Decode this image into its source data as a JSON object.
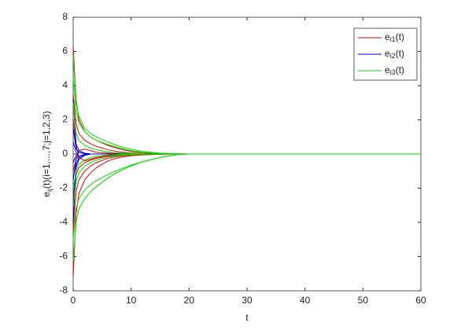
{
  "chart_data": {
    "type": "line",
    "xlabel": "t",
    "ylabel": [
      "e",
      "ij",
      "(t)(i=1,...,7;j=1,2,3)"
    ],
    "x": [
      0,
      0.5,
      1,
      2,
      3,
      4,
      6,
      8,
      10,
      12,
      15,
      18,
      20,
      30,
      40,
      50,
      60
    ],
    "xlim": [
      0,
      60
    ],
    "xticks": [
      0,
      10,
      20,
      30,
      40,
      50,
      60
    ],
    "ylim": [
      -8,
      8
    ],
    "yticks": [
      -8,
      -6,
      -4,
      -2,
      0,
      2,
      4,
      6,
      8
    ],
    "legend": "upper-right",
    "series": [
      {
        "name": [
          "e",
          "i1",
          "(t)"
        ],
        "color": "#e00000",
        "values": [
          [
            6.3,
            3.2,
            2.0,
            1.3,
            1.0,
            0.8,
            0.5,
            0.3,
            0.15,
            0.08,
            0.03,
            0.01,
            0,
            0,
            0,
            0,
            0
          ],
          [
            3.5,
            1.8,
            1.2,
            0.8,
            0.6,
            0.45,
            0.25,
            0.12,
            0.06,
            0.03,
            0.01,
            0,
            0,
            0,
            0,
            0,
            0
          ],
          [
            2.0,
            0.5,
            -0.2,
            -0.4,
            -0.3,
            -0.2,
            -0.1,
            -0.05,
            -0.02,
            0,
            0,
            0,
            0,
            0,
            0,
            0,
            0
          ],
          [
            -1.0,
            -0.3,
            0.2,
            0.3,
            0.2,
            0.1,
            0.05,
            0.02,
            0,
            0,
            0,
            0,
            0,
            0,
            0,
            0,
            0
          ],
          [
            -2.5,
            -1.2,
            -0.8,
            -0.5,
            -0.35,
            -0.25,
            -0.12,
            -0.06,
            -0.03,
            -0.01,
            0,
            0,
            0,
            0,
            0,
            0,
            0
          ],
          [
            -4.5,
            -2.2,
            -1.5,
            -1.0,
            -0.7,
            -0.5,
            -0.25,
            -0.12,
            -0.06,
            -0.03,
            -0.01,
            0,
            0,
            0,
            0,
            0,
            0
          ],
          [
            -7.2,
            -3.5,
            -2.3,
            -1.5,
            -1.1,
            -0.8,
            -0.4,
            -0.2,
            -0.1,
            -0.05,
            -0.02,
            0,
            0,
            0,
            0,
            0,
            0
          ]
        ]
      },
      {
        "name": [
          "e",
          "i2",
          "(t)"
        ],
        "color": "#0000d0",
        "values": [
          [
            3.2,
            0.6,
            0.2,
            0.05,
            0,
            0,
            0,
            0,
            0,
            0,
            0,
            0,
            0,
            0,
            0,
            0,
            0
          ],
          [
            1.5,
            0.3,
            0.1,
            0.02,
            0,
            0,
            0,
            0,
            0,
            0,
            0,
            0,
            0,
            0,
            0,
            0,
            0
          ],
          [
            0.7,
            0.1,
            -0.2,
            -0.05,
            0,
            0,
            0,
            0,
            0,
            0,
            0,
            0,
            0,
            0,
            0,
            0,
            0
          ],
          [
            -0.5,
            -0.1,
            0.1,
            0.02,
            0,
            0,
            0,
            0,
            0,
            0,
            0,
            0,
            0,
            0,
            0,
            0,
            0
          ],
          [
            -1.5,
            -0.3,
            -0.1,
            -0.02,
            0,
            0,
            0,
            0,
            0,
            0,
            0,
            0,
            0,
            0,
            0,
            0,
            0
          ],
          [
            -3.0,
            -0.6,
            -0.2,
            -0.05,
            0,
            0,
            0,
            0,
            0,
            0,
            0,
            0,
            0,
            0,
            0,
            0,
            0
          ],
          [
            -4.0,
            -0.8,
            -0.3,
            -0.08,
            0,
            0,
            0,
            0,
            0,
            0,
            0,
            0,
            0,
            0,
            0,
            0,
            0
          ]
        ]
      },
      {
        "name": [
          "e",
          "i3",
          "(t)"
        ],
        "color": "#00dd00",
        "values": [
          [
            5.8,
            3.0,
            2.2,
            1.5,
            1.2,
            1.0,
            0.7,
            0.45,
            0.28,
            0.15,
            0.05,
            0.01,
            0,
            0,
            0,
            0,
            0
          ],
          [
            4.5,
            2.5,
            1.8,
            1.3,
            1.0,
            0.8,
            0.55,
            0.35,
            0.2,
            0.1,
            0.03,
            0,
            0,
            0,
            0,
            0,
            0
          ],
          [
            3.0,
            1.2,
            0.8,
            0.5,
            0.35,
            0.25,
            0.12,
            0.06,
            0.03,
            0.01,
            0,
            0,
            0,
            0,
            0,
            0,
            0
          ],
          [
            -2.0,
            -1.0,
            -0.6,
            -0.35,
            -0.2,
            -0.12,
            -0.05,
            -0.02,
            0,
            0,
            0,
            0,
            0,
            0,
            0,
            0,
            0
          ],
          [
            -3.0,
            -1.6,
            -1.1,
            -0.7,
            -0.5,
            -0.35,
            -0.18,
            -0.08,
            -0.04,
            -0.02,
            0,
            0,
            0,
            0,
            0,
            0,
            0
          ],
          [
            -5.0,
            -3.2,
            -2.6,
            -2.1,
            -1.8,
            -1.55,
            -1.2,
            -0.9,
            -0.65,
            -0.45,
            -0.2,
            -0.03,
            0,
            0,
            0,
            0,
            0
          ],
          [
            -6.3,
            -4.0,
            -3.2,
            -2.6,
            -2.2,
            -1.9,
            -1.4,
            -1.0,
            -0.7,
            -0.45,
            -0.2,
            -0.03,
            0,
            0,
            0,
            0,
            0
          ]
        ]
      }
    ]
  }
}
